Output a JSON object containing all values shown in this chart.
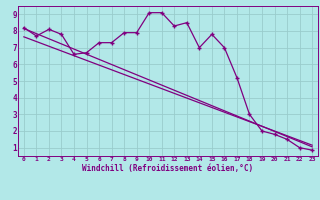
{
  "xlabel": "Windchill (Refroidissement éolien,°C)",
  "bg_color": "#b2e8e8",
  "line_color": "#800080",
  "grid_color": "#99cccc",
  "xlim": [
    -0.5,
    23.5
  ],
  "ylim": [
    0.5,
    9.5
  ],
  "xticks": [
    0,
    1,
    2,
    3,
    4,
    5,
    6,
    7,
    8,
    9,
    10,
    11,
    12,
    13,
    14,
    15,
    16,
    17,
    18,
    19,
    20,
    21,
    22,
    23
  ],
  "yticks": [
    1,
    2,
    3,
    4,
    5,
    6,
    7,
    8,
    9
  ],
  "line1_x": [
    0,
    1,
    2,
    3,
    4,
    5,
    6,
    7,
    8,
    9,
    10,
    11,
    12,
    13,
    14,
    15,
    16,
    17,
    18,
    19,
    20,
    21,
    22,
    23
  ],
  "line1_y": [
    8.2,
    7.7,
    8.1,
    7.8,
    6.6,
    6.7,
    7.3,
    7.3,
    7.9,
    7.9,
    9.1,
    9.1,
    8.3,
    8.5,
    7.0,
    7.8,
    7.0,
    5.2,
    3.0,
    2.0,
    1.8,
    1.5,
    1.0,
    0.85
  ],
  "line2_x": [
    0,
    23
  ],
  "line2_y": [
    8.15,
    1.05
  ],
  "line3_x": [
    0,
    23
  ],
  "line3_y": [
    7.65,
    1.15
  ]
}
